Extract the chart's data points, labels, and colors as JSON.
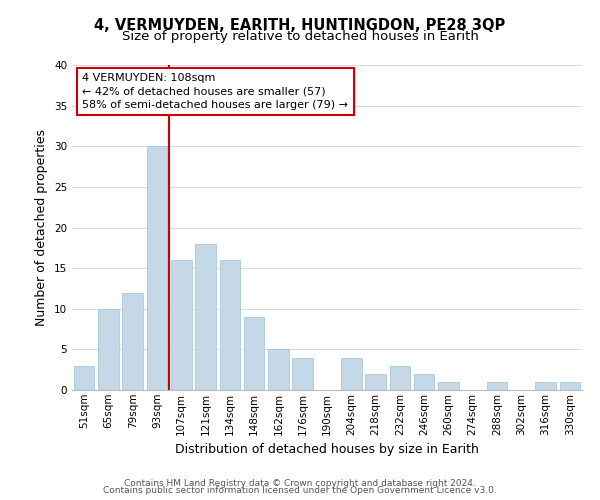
{
  "title": "4, VERMUYDEN, EARITH, HUNTINGDON, PE28 3QP",
  "subtitle": "Size of property relative to detached houses in Earith",
  "xlabel": "Distribution of detached houses by size in Earith",
  "ylabel": "Number of detached properties",
  "bar_labels": [
    "51sqm",
    "65sqm",
    "79sqm",
    "93sqm",
    "107sqm",
    "121sqm",
    "134sqm",
    "148sqm",
    "162sqm",
    "176sqm",
    "190sqm",
    "204sqm",
    "218sqm",
    "232sqm",
    "246sqm",
    "260sqm",
    "274sqm",
    "288sqm",
    "302sqm",
    "316sqm",
    "330sqm"
  ],
  "bar_values": [
    3,
    10,
    12,
    30,
    16,
    18,
    16,
    9,
    5,
    4,
    0,
    4,
    2,
    3,
    2,
    1,
    0,
    1,
    0,
    1,
    1
  ],
  "bar_color": "#c5d8e8",
  "bar_edge_color": "#a8c8dc",
  "vline_color": "#cc0000",
  "annotation_box_edge": "#cc0000",
  "annotation_line0": "4 VERMUYDEN: 108sqm",
  "annotation_line1": "← 42% of detached houses are smaller (57)",
  "annotation_line2": "58% of semi-detached houses are larger (79) →",
  "ylim": [
    0,
    40
  ],
  "yticks": [
    0,
    5,
    10,
    15,
    20,
    25,
    30,
    35,
    40
  ],
  "footer1": "Contains HM Land Registry data © Crown copyright and database right 2024.",
  "footer2": "Contains public sector information licensed under the Open Government Licence v3.0.",
  "title_fontsize": 10.5,
  "subtitle_fontsize": 9.5,
  "axis_label_fontsize": 9,
  "tick_fontsize": 7.5,
  "annotation_fontsize": 8,
  "footer_fontsize": 6.5,
  "grid_color": "#d0dce8",
  "vline_x_index": 4
}
